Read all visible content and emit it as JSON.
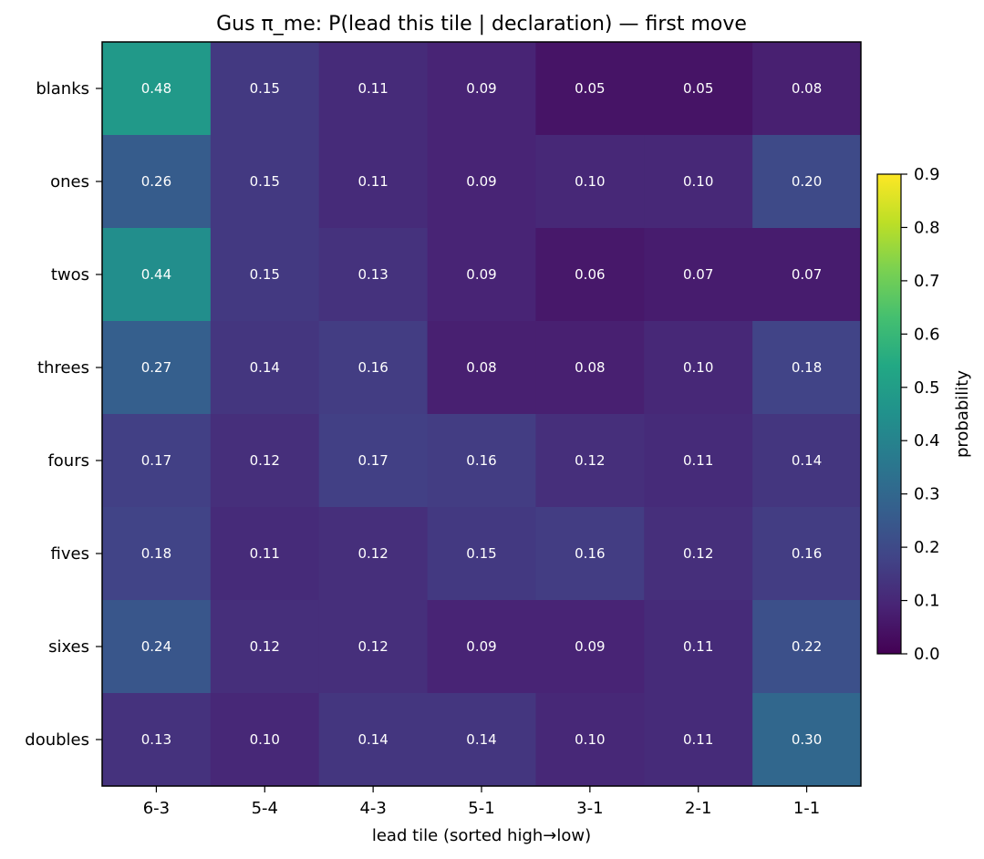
{
  "chart_data": {
    "type": "heatmap",
    "title": "Gus π_me: P(lead this tile | declaration) — first move",
    "xlabel": "lead tile (sorted high→low)",
    "ylabel": "",
    "columns": [
      "6-3",
      "5-4",
      "4-3",
      "5-1",
      "3-1",
      "2-1",
      "1-1"
    ],
    "rows": [
      "blanks",
      "ones",
      "twos",
      "threes",
      "fours",
      "fives",
      "sixes",
      "doubles"
    ],
    "values": [
      [
        0.48,
        0.15,
        0.11,
        0.09,
        0.05,
        0.05,
        0.08
      ],
      [
        0.26,
        0.15,
        0.11,
        0.09,
        0.1,
        0.1,
        0.2
      ],
      [
        0.44,
        0.15,
        0.13,
        0.09,
        0.06,
        0.07,
        0.07
      ],
      [
        0.27,
        0.14,
        0.16,
        0.08,
        0.08,
        0.1,
        0.18
      ],
      [
        0.17,
        0.12,
        0.17,
        0.16,
        0.12,
        0.11,
        0.14
      ],
      [
        0.18,
        0.11,
        0.12,
        0.15,
        0.16,
        0.12,
        0.16
      ],
      [
        0.24,
        0.12,
        0.12,
        0.09,
        0.09,
        0.11,
        0.22
      ],
      [
        0.13,
        0.1,
        0.14,
        0.14,
        0.1,
        0.11,
        0.3
      ]
    ],
    "colormap": "viridis",
    "vmin": 0.0,
    "vmax": 0.9,
    "colorbar": {
      "label": "probability",
      "ticks": [
        "0.0",
        "0.1",
        "0.2",
        "0.3",
        "0.4",
        "0.5",
        "0.6",
        "0.7",
        "0.8",
        "0.9"
      ]
    }
  }
}
